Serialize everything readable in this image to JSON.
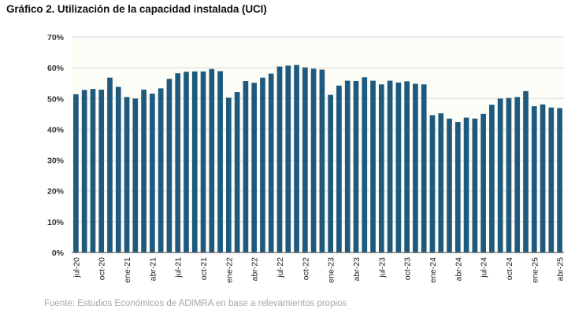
{
  "title": "Gráfico 2. Utilización de la capacidad instalada (UCI)",
  "source": "Fuente: Estudios Económicos de ADIMRA en base a relevamientos propios",
  "colors": {
    "bar": "#1f5a7e",
    "grid": "#d9d9d9",
    "plot_bg": "#fdfdf7",
    "axis": "#444444"
  },
  "chart_data": {
    "type": "bar",
    "title": "Gráfico 2. Utilización de la capacidad instalada (UCI)",
    "xlabel": "",
    "ylabel": "",
    "ylim": [
      0,
      70
    ],
    "yticks": [
      "0%",
      "10%",
      "20%",
      "30%",
      "40%",
      "50%",
      "60%",
      "70%"
    ],
    "grid": true,
    "categories": [
      "jul-20",
      "ago-20",
      "sep-20",
      "oct-20",
      "nov-20",
      "dic-20",
      "ene-21",
      "feb-21",
      "mar-21",
      "abr-21",
      "may-21",
      "jun-21",
      "jul-21",
      "ago-21",
      "sep-21",
      "oct-21",
      "nov-21",
      "dic-21",
      "ene-22",
      "feb-22",
      "mar-22",
      "abr-22",
      "may-22",
      "jun-22",
      "jul-22",
      "ago-22",
      "sep-22",
      "oct-22",
      "nov-22",
      "dic-22",
      "ene-23",
      "feb-23",
      "mar-23",
      "abr-23",
      "may-23",
      "jun-23",
      "jul-23",
      "ago-23",
      "sep-23",
      "oct-23",
      "nov-23",
      "dic-23",
      "ene-24",
      "feb-24",
      "mar-24",
      "abr-24",
      "may-24",
      "jun-24",
      "jul-24",
      "ago-24",
      "sep-24",
      "oct-24",
      "nov-24",
      "dic-24",
      "ene-25",
      "feb-25",
      "mar-25",
      "abr-25"
    ],
    "shown_labels": [
      "jul-20",
      "oct-20",
      "ene-21",
      "abr-21",
      "jul-21",
      "oct-21",
      "ene-22",
      "abr-22",
      "jul-22",
      "oct-22",
      "ene-23",
      "abr-23",
      "jul-23",
      "oct-23",
      "ene-24",
      "abr-24",
      "jul-24",
      "oct-24",
      "ene-25",
      "abr-25"
    ],
    "values": [
      51.4,
      52.8,
      53.1,
      52.9,
      56.8,
      53.8,
      50.5,
      50.0,
      52.9,
      51.6,
      53.3,
      56.4,
      58.2,
      58.7,
      58.8,
      58.8,
      59.6,
      58.9,
      50.3,
      52.1,
      55.7,
      55.1,
      56.8,
      58.1,
      60.4,
      60.7,
      60.9,
      60.1,
      59.7,
      59.4,
      51.2,
      54.2,
      55.8,
      55.7,
      56.9,
      55.8,
      54.6,
      55.8,
      55.2,
      55.6,
      54.8,
      54.6,
      44.6,
      45.2,
      43.5,
      42.4,
      43.8,
      43.5,
      45.0,
      48.0,
      50.0,
      50.2,
      50.5,
      52.4,
      47.5,
      48.1,
      47.1,
      46.9
    ]
  }
}
